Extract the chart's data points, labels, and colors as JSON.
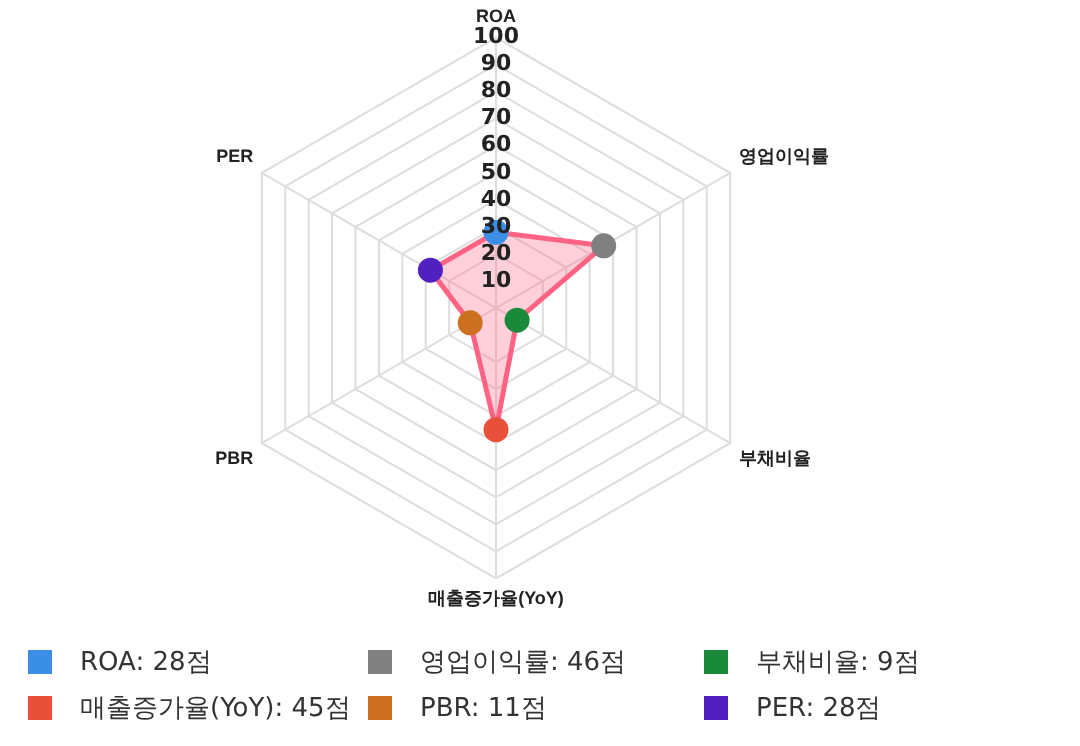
{
  "chart_data": {
    "type": "radar",
    "categories": [
      "ROA",
      "영업이익률",
      "부채비율",
      "매출증가율(YoY)",
      "PBR",
      "PER"
    ],
    "series": [
      {
        "color": "#ff6384",
        "values": [
          28,
          46,
          9,
          45,
          11,
          28
        ],
        "colors": [
          "#3a8ee6",
          "#808080",
          "#1a8a3a",
          "#e8503a",
          "#cc7020",
          "#5020c0"
        ]
      }
    ],
    "annotations": [
      ": 28점",
      ": 46점",
      ": 9점",
      ": 45점",
      ": 11점",
      ": 28점"
    ],
    "ylim": [
      0,
      100
    ],
    "yticks": [
      10,
      20,
      30,
      40,
      50,
      60,
      70,
      80,
      90,
      100
    ],
    "grid": true,
    "marker": "circle"
  }
}
